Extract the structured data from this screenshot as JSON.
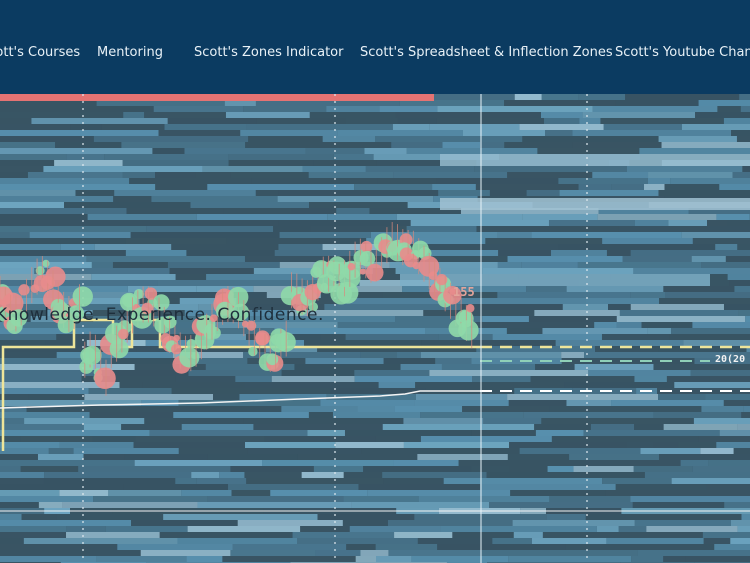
{
  "nav": {
    "items": [
      {
        "id": "courses",
        "label": "Scott's Courses"
      },
      {
        "id": "mentoring",
        "label": "Mentoring"
      },
      {
        "id": "zones",
        "label": "Scott's Zones Indicator"
      },
      {
        "id": "spreadsheet",
        "label": "Scott's Spreadsheet & Inflection Zones"
      },
      {
        "id": "youtube",
        "label": "Scott's Youtube Channel"
      }
    ]
  },
  "hero": {
    "tagline": "Knowledge. Experience. Confidence.",
    "price_marker": "155",
    "level_label": "20(20"
  },
  "colors": {
    "nav_bg": "#0b3b61",
    "nav_text": "#e8f1f7",
    "yellow_line": "#eee59a",
    "bubble_green": "#8fd9a8",
    "bubble_red": "#e88c8c",
    "heat_blue": "#6aaed0",
    "top_red_bar": "#e57373"
  }
}
